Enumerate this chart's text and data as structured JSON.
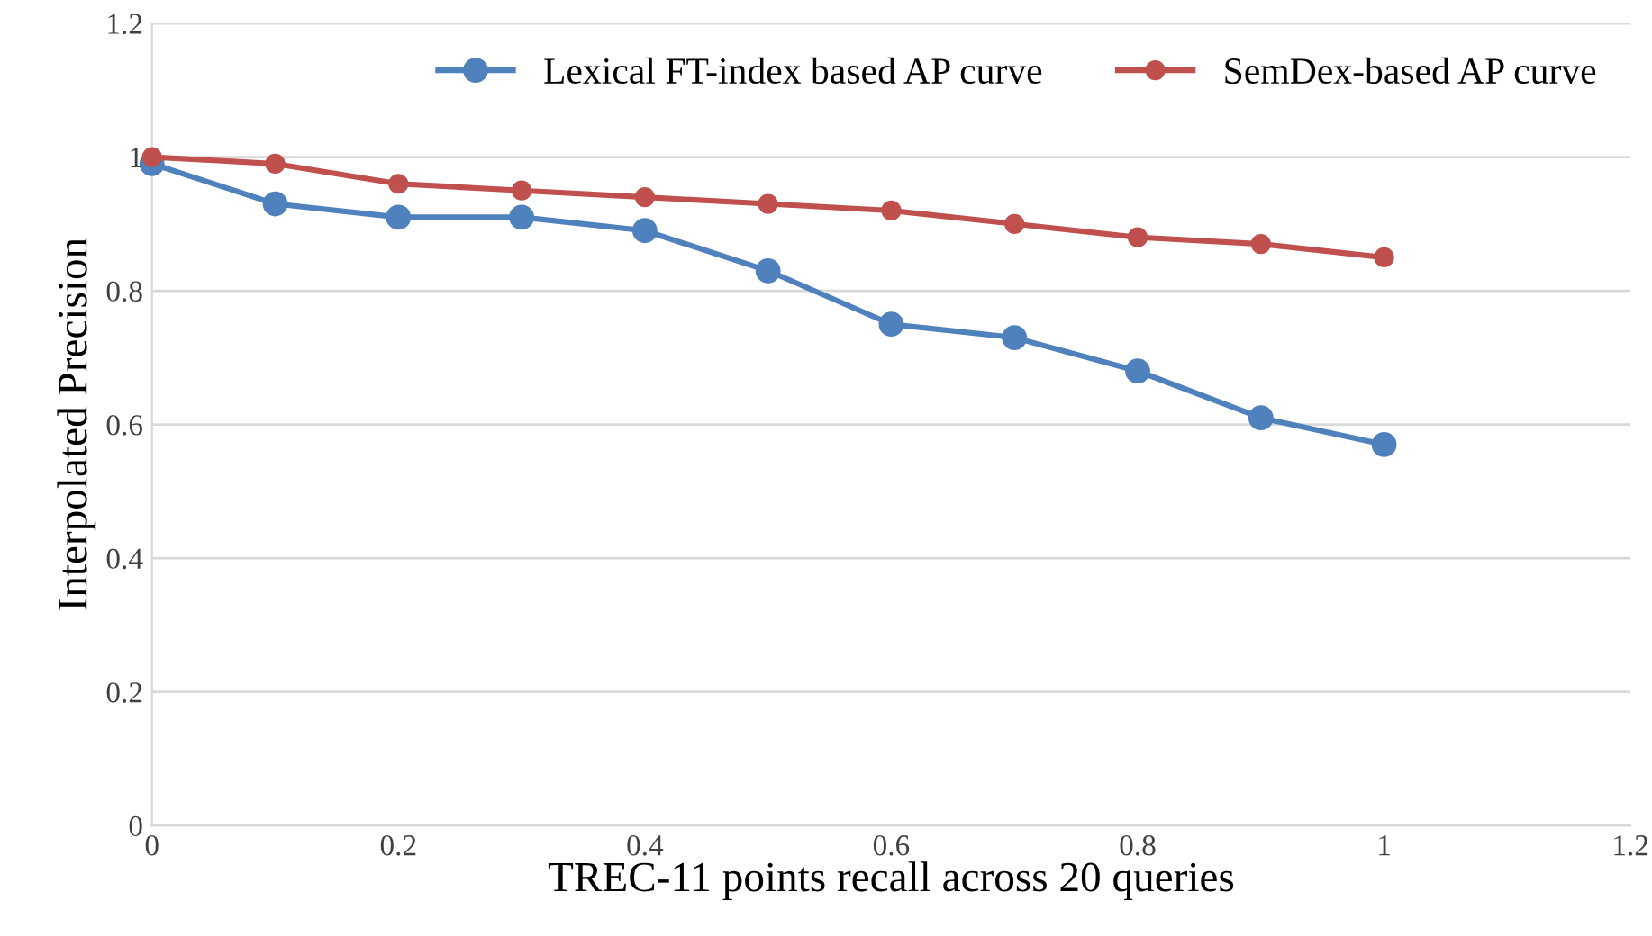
{
  "chart_data": {
    "type": "line",
    "xlabel": "TREC-11 points recall across 20 queries",
    "ylabel": "Interpolated Precision",
    "x": [
      0,
      0.1,
      0.2,
      0.3,
      0.4,
      0.5,
      0.6,
      0.7,
      0.8,
      0.9,
      1
    ],
    "series": [
      {
        "name": "Lexical FT-index based AP curve",
        "color": "#4f81bd",
        "values": [
          0.99,
          0.93,
          0.91,
          0.91,
          0.89,
          0.83,
          0.75,
          0.73,
          0.68,
          0.61,
          0.57
        ]
      },
      {
        "name": "SemDex-based AP curve",
        "color": "#c0504d",
        "values": [
          1.0,
          0.99,
          0.96,
          0.95,
          0.94,
          0.93,
          0.92,
          0.9,
          0.88,
          0.87,
          0.85
        ]
      }
    ],
    "xlim": [
      0,
      1.2
    ],
    "xticks": [
      0,
      0.2,
      0.4,
      0.6,
      0.8,
      1,
      1.2
    ],
    "ylim": [
      0,
      1.2
    ],
    "yticks": [
      0,
      0.2,
      0.4,
      0.6,
      0.8,
      1,
      1.2
    ],
    "grid": "y",
    "legend": "top right",
    "marker": "circle",
    "line_style": "solid"
  }
}
